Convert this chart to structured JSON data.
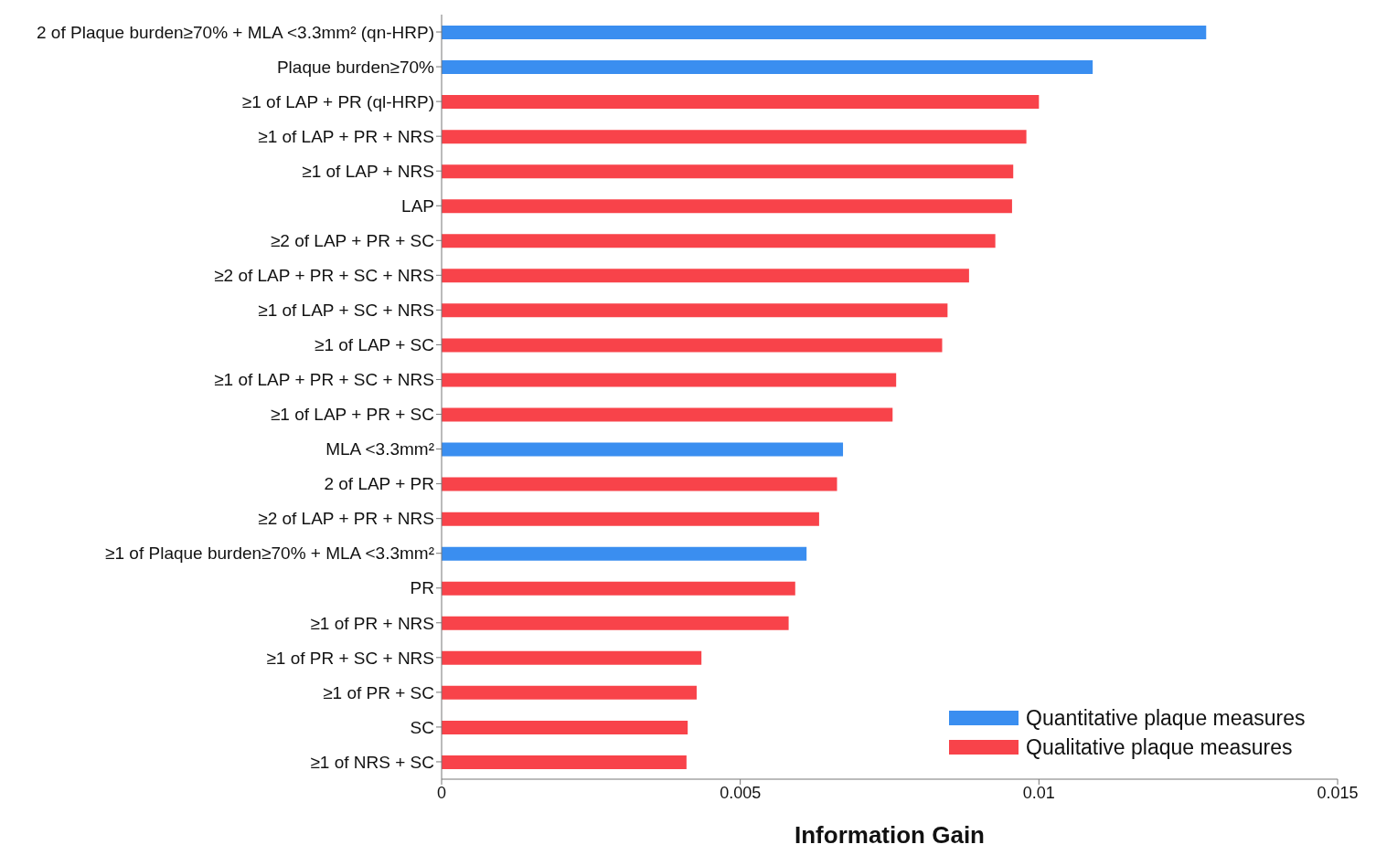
{
  "chart_data": {
    "type": "bar",
    "orientation": "horizontal",
    "xlabel": "Information Gain",
    "categories": [
      "2 of Plaque burden≥70% + MLA <3.3mm² (qn-HRP)",
      "Plaque burden≥70%",
      "≥1 of LAP + PR (ql-HRP)",
      "≥1 of LAP + PR + NRS",
      "≥1 of LAP + NRS",
      "LAP",
      "≥2 of LAP + PR + SC",
      "≥2 of LAP + PR + SC + NRS",
      "≥1 of LAP + SC + NRS",
      "≥1 of LAP + SC",
      "≥1 of LAP + PR + SC + NRS",
      "≥1 of LAP + PR + SC",
      "MLA <3.3mm²",
      "2 of LAP + PR",
      "≥2 of LAP + PR + NRS",
      "≥1 of Plaque burden≥70% + MLA <3.3mm²",
      "PR",
      "≥1 of PR + NRS",
      "≥1 of PR + SC + NRS",
      "≥1 of PR + SC",
      "SC",
      "≥1 of NRS + SC"
    ],
    "series": [
      {
        "name": "Quantitative plaque measures",
        "color": "#3a8ef0",
        "values": [
          0.0128,
          0.0109,
          null,
          null,
          null,
          null,
          null,
          null,
          null,
          null,
          null,
          null,
          0.00672,
          null,
          null,
          0.00611,
          null,
          null,
          null,
          null,
          null,
          null
        ]
      },
      {
        "name": "Qualitative plaque measures",
        "color": "#f8434a",
        "values": [
          null,
          null,
          0.01,
          0.00979,
          0.00957,
          0.00955,
          0.00927,
          0.00883,
          0.00847,
          0.00838,
          0.00761,
          0.00755,
          null,
          0.00662,
          0.00632,
          null,
          0.00592,
          0.00581,
          0.00435,
          0.00427,
          0.00412,
          0.0041
        ]
      }
    ],
    "xlim": [
      0,
      0.015
    ],
    "xticks": [
      0,
      0.005,
      0.01,
      0.015
    ],
    "grid": false,
    "legend": "bottom right"
  }
}
